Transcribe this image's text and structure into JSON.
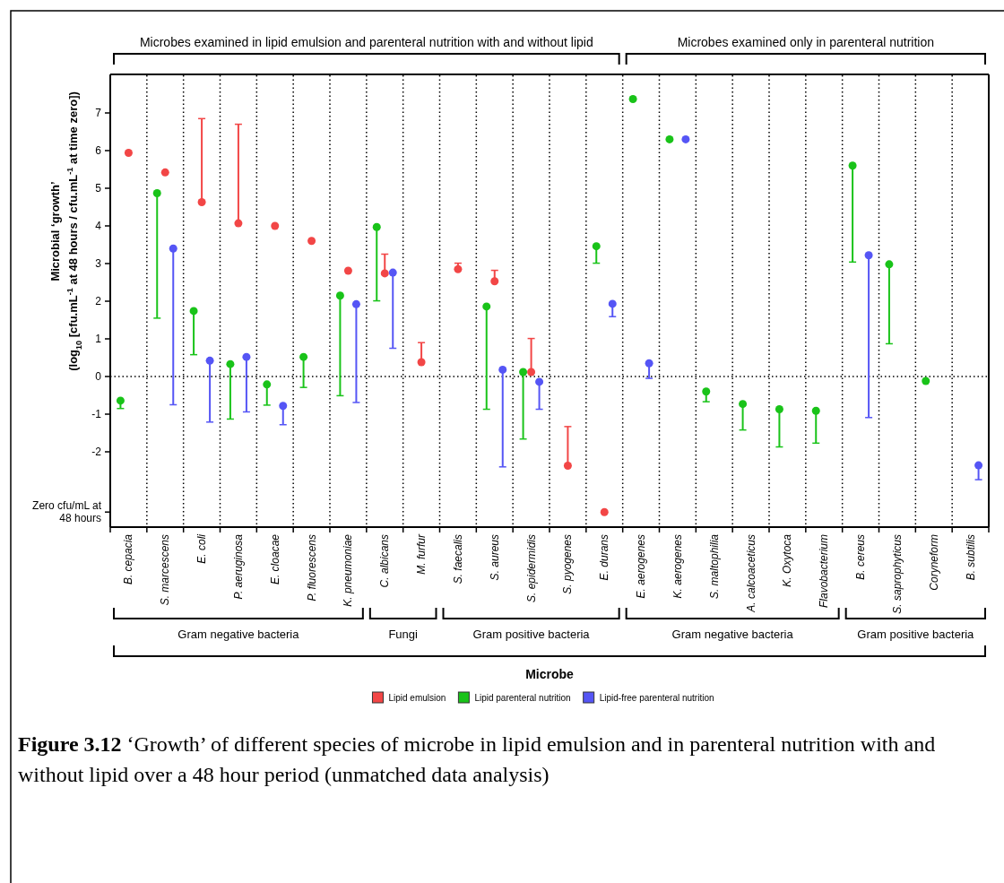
{
  "chart_data": {
    "type": "scatter",
    "title": "Figure 3.12",
    "subtitle": "‘Growth’ of different species of microbe in lipid emulsion and in parenteral nutrition with and without lipid over a 48 hour period (unmatched data analysis)",
    "xlabel": "Microbe",
    "ylabel": "Microbial ‘growth’\n(log$_{10}$ [cfu.mL$^{-1}$ at 48 hours / cfu.mL$^{-1}$ at time zero])",
    "annotations": [
      "Microbes examined in lipid emulsion and parenteral nutrition with and without lipid",
      "Microbes examined only in parenteral nutrition",
      "Gram negative bacteria",
      "Fungi",
      "Gram positive bacteria",
      "Gram negative bacteria",
      "Gram positive bacteria"
    ],
    "categories": [
      "B. cepacia",
      "S. marcescens",
      "E. coli",
      "P. aeruginosa",
      "E. cloacae",
      "P. fluorescens",
      "K. pneumoniae",
      "C. albicans",
      "M. furfur",
      "S. faecalis",
      "S. aureus",
      "S. epidermidis",
      "S. pyogenes",
      "E. durans",
      "E. aerogenes",
      "K. aerogenes",
      "S. maltophilia",
      "A. calcoaceticus",
      "K. Oxytoca",
      "Flavobacterium",
      "B. cereus",
      "S. saprophyticus",
      "Coryneform",
      "B. subtilis"
    ],
    "ylim": [
      -4,
      8
    ],
    "yticks": [
      {
        "value": -3.6,
        "label": "Zero cfu/mL at 48 hours"
      },
      -2,
      -1,
      0,
      1,
      2,
      3,
      4,
      5,
      6,
      7
    ],
    "grid": "x",
    "legend": "bottom",
    "marker": "circle",
    "ref_lines": [
      {
        "axis": "y",
        "value": 0,
        "line_style": "dotted",
        "color": "#000000"
      }
    ],
    "series": [
      {
        "name": "Lipid emulsion",
        "color": "#f24646",
        "values": [
          5.94,
          5.42,
          4.63,
          4.07,
          4.0,
          3.6,
          2.81,
          2.74,
          0.38,
          2.85,
          2.53,
          0.12,
          -2.37,
          -3.6,
          null,
          null,
          null,
          null,
          null,
          null,
          null,
          null,
          null,
          null
        ],
        "errors": [
          null,
          null,
          [
            4.63,
            6.85
          ],
          [
            4.07,
            6.7
          ],
          null,
          null,
          null,
          [
            2.74,
            3.25
          ],
          [
            0.38,
            0.9
          ],
          [
            2.85,
            3.01
          ],
          [
            2.53,
            2.82
          ],
          [
            0.12,
            1.01
          ],
          [
            -2.37,
            -1.33
          ],
          null,
          null,
          null,
          null,
          null,
          null,
          null,
          null,
          null,
          null,
          null
        ]
      },
      {
        "name": "Lipid parenteral nutrition",
        "color": "#19c319",
        "values": [
          -0.64,
          4.87,
          1.74,
          0.33,
          -0.21,
          0.52,
          2.15,
          3.97,
          null,
          null,
          1.86,
          0.12,
          null,
          3.46,
          7.37,
          6.3,
          -0.4,
          -0.73,
          -0.87,
          -0.91,
          5.6,
          2.98,
          -0.12,
          null
        ],
        "errors": [
          [
            -0.85,
            -0.64
          ],
          [
            1.55,
            4.87
          ],
          [
            0.58,
            1.74
          ],
          [
            -1.13,
            0.33
          ],
          [
            -0.76,
            -0.21
          ],
          [
            -0.29,
            0.52
          ],
          [
            -0.51,
            2.15
          ],
          [
            2.01,
            3.97
          ],
          null,
          null,
          [
            -0.87,
            1.86
          ],
          [
            -1.66,
            0.12
          ],
          null,
          [
            3.01,
            3.46
          ],
          null,
          null,
          [
            -0.67,
            -0.4
          ],
          [
            -1.42,
            -0.73
          ],
          [
            -1.87,
            -0.87
          ],
          [
            -1.77,
            -0.91
          ],
          [
            3.04,
            5.6
          ],
          [
            0.87,
            2.98
          ],
          null,
          null
        ]
      },
      {
        "name": "Lipid-free parenteral nutrition",
        "color": "#5555f5",
        "values": [
          null,
          3.4,
          0.42,
          0.52,
          -0.78,
          null,
          1.92,
          2.76,
          null,
          null,
          0.18,
          -0.14,
          null,
          1.93,
          0.35,
          6.3,
          null,
          null,
          null,
          null,
          3.22,
          null,
          null,
          -2.36
        ],
        "errors": [
          null,
          [
            -0.75,
            3.4
          ],
          [
            -1.21,
            0.42
          ],
          [
            -0.94,
            0.52
          ],
          [
            -1.28,
            -0.78
          ],
          null,
          [
            -0.69,
            1.92
          ],
          [
            0.75,
            2.76
          ],
          null,
          null,
          [
            -2.4,
            0.18
          ],
          [
            -0.87,
            -0.14
          ],
          null,
          [
            1.59,
            1.93
          ],
          [
            -0.05,
            0.35
          ],
          null,
          null,
          null,
          null,
          null,
          [
            -1.09,
            3.22
          ],
          null,
          null,
          [
            -2.74,
            -2.36
          ]
        ]
      }
    ]
  }
}
